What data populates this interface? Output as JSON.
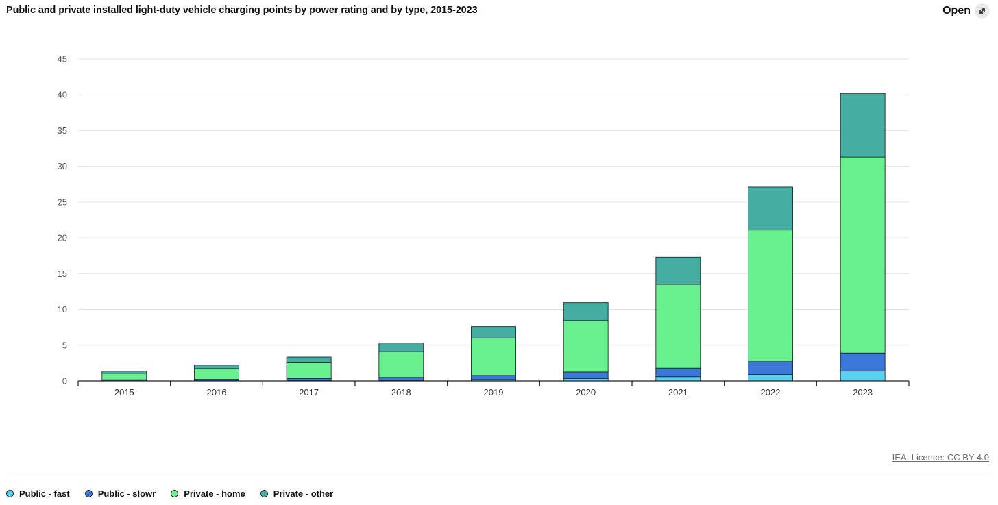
{
  "header": {
    "title": "Public and private installed light-duty vehicle charging points by power rating and by type, 2015-2023",
    "open_label": "Open",
    "open_icon": "expand-icon"
  },
  "footer": {
    "licence": "IEA. Licence: CC BY 4.0"
  },
  "chart_data": {
    "type": "bar",
    "stacked": true,
    "title": "Public and private installed light-duty vehicle charging points by power rating and by type, 2015-2023",
    "xlabel": "",
    "ylabel": "",
    "ylim": [
      0,
      45
    ],
    "yticks": [
      0,
      5,
      10,
      15,
      20,
      25,
      30,
      35,
      40,
      45
    ],
    "grid": true,
    "legend_position": "bottom-left",
    "categories": [
      "2015",
      "2016",
      "2017",
      "2018",
      "2019",
      "2020",
      "2021",
      "2022",
      "2023"
    ],
    "series": [
      {
        "name": "Public - fast",
        "color": "#5bd1f0",
        "values": [
          0.02,
          0.03,
          0.05,
          0.1,
          0.2,
          0.35,
          0.6,
          0.9,
          1.4
        ]
      },
      {
        "name": "Public - slowr",
        "color": "#3c78d8",
        "values": [
          0.15,
          0.2,
          0.3,
          0.4,
          0.6,
          0.9,
          1.2,
          1.8,
          2.5
        ]
      },
      {
        "name": "Private - home",
        "color": "#69f08f",
        "values": [
          0.9,
          1.5,
          2.2,
          3.6,
          5.2,
          7.2,
          11.7,
          18.4,
          27.4
        ]
      },
      {
        "name": "Private - other",
        "color": "#45ada1",
        "values": [
          0.3,
          0.5,
          0.8,
          1.2,
          1.6,
          2.5,
          3.8,
          6.0,
          8.9
        ]
      }
    ]
  }
}
